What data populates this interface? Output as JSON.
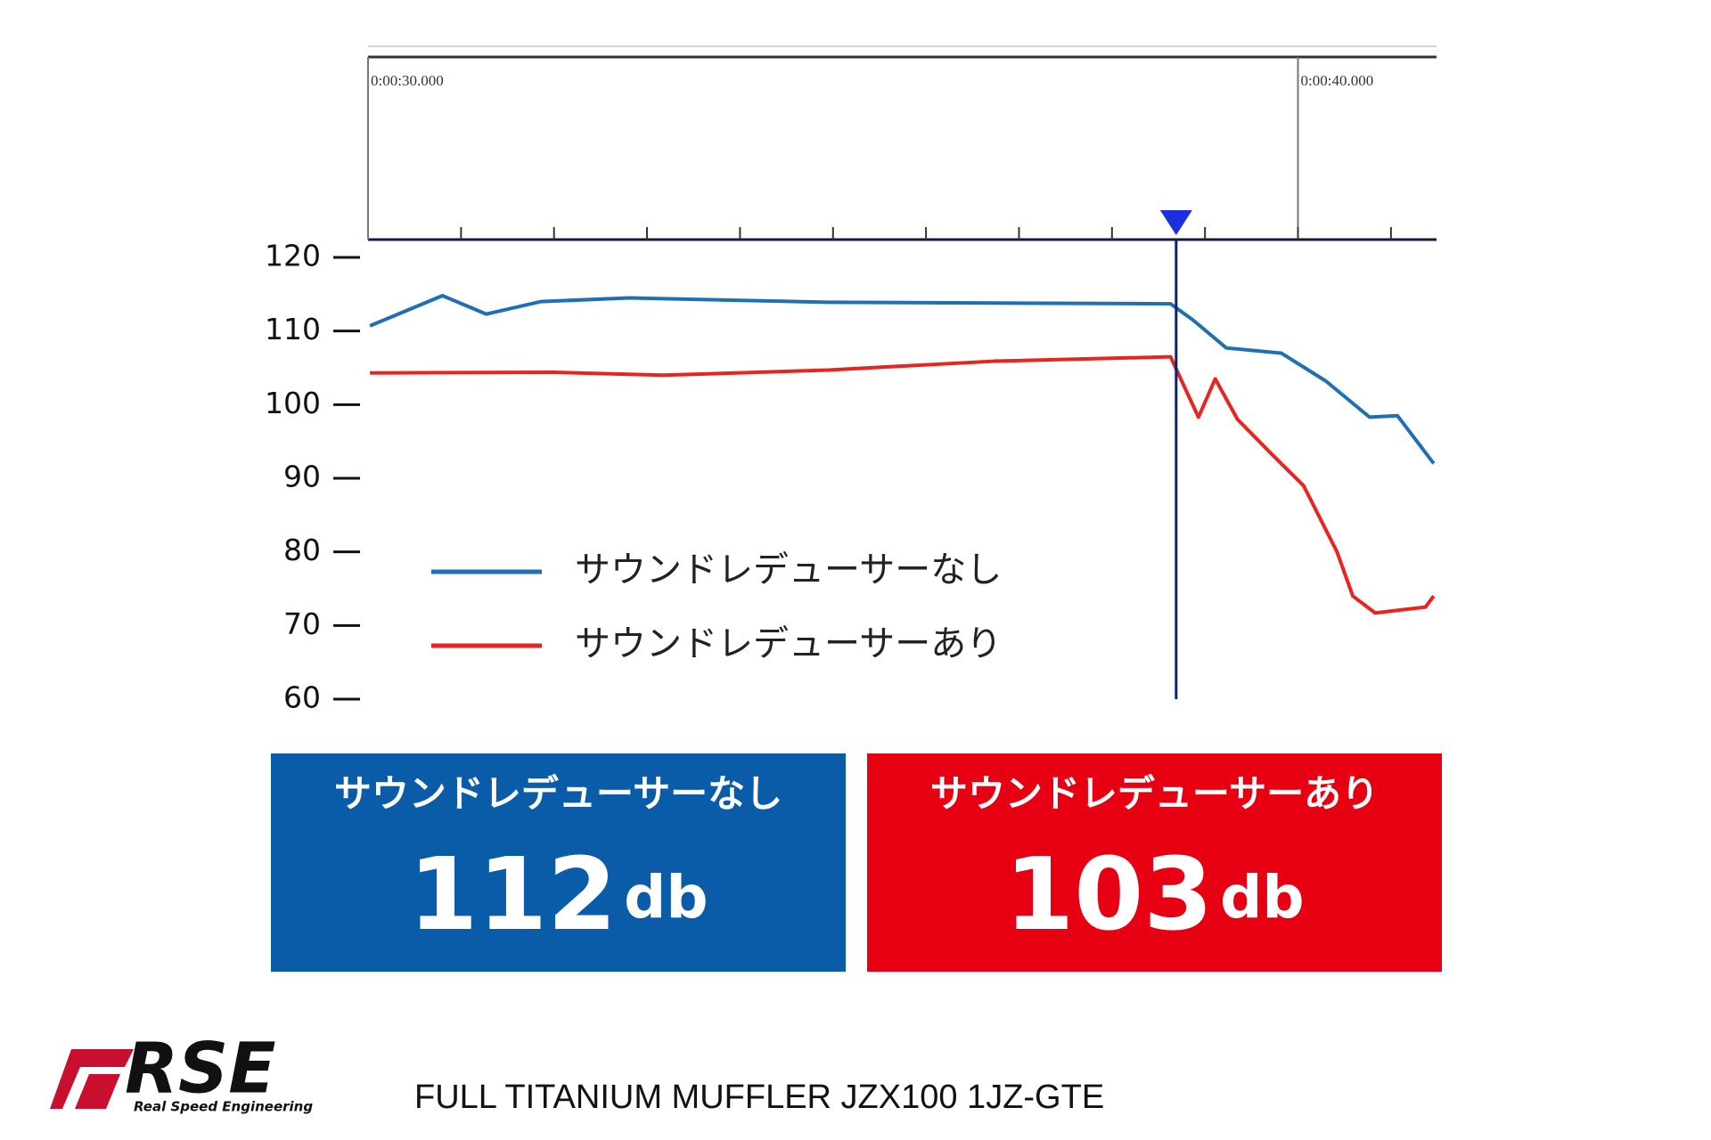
{
  "chart_data": {
    "type": "line",
    "xlim": [
      30,
      41.49
    ],
    "ylim": [
      60,
      120
    ],
    "yticks": [
      60,
      70,
      80,
      90,
      100,
      110,
      120
    ],
    "xticks": [
      {
        "value": 30,
        "label": "0:00:30.000"
      },
      {
        "value": 40,
        "label": "0:00:40.000"
      }
    ],
    "xminor_ticks": [
      31,
      32,
      33,
      34,
      35,
      36,
      37,
      38,
      39,
      40,
      41
    ],
    "cursor_x": 38.69,
    "legend": "lower-left",
    "series": [
      {
        "name": "サウンドレデューサーなし",
        "color": "#1f6fb5",
        "x": [
          30.02,
          30.8,
          31.27,
          31.86,
          32.81,
          34.95,
          38.63,
          38.87,
          39.23,
          39.82,
          40.3,
          40.77,
          41.07,
          41.46
        ],
        "values": [
          110.7,
          114.8,
          112.3,
          114,
          114.5,
          113.9,
          113.7,
          111.5,
          107.7,
          107,
          103.2,
          98.3,
          98.5,
          92
        ]
      },
      {
        "name": "サウンドレデューサーあり",
        "color": "#e8241f",
        "x": [
          30.02,
          31.98,
          33.17,
          34.95,
          36.73,
          38.63,
          38.75,
          38.93,
          39.11,
          39.35,
          39.7,
          40.06,
          40.42,
          40.59,
          40.83,
          41.37,
          41.46
        ],
        "values": [
          104.3,
          104.4,
          104,
          104.7,
          105.9,
          106.5,
          103.2,
          98.3,
          103.5,
          98,
          93.5,
          89,
          80,
          74,
          71.7,
          72.5,
          74
        ]
      }
    ]
  },
  "summary": [
    {
      "label": "サウンドレデューサーなし",
      "value": 112,
      "unit": "db",
      "color": "#0a5ca8"
    },
    {
      "label": "サウンドレデューサーあり",
      "value": 103,
      "unit": "db",
      "color": "#e60012"
    }
  ],
  "footer": {
    "logo": "RSE",
    "logo_sub": "Real Speed Engineering",
    "text": "FULL TITANIUM MUFFLER JZX100 1JZ-GTE"
  }
}
